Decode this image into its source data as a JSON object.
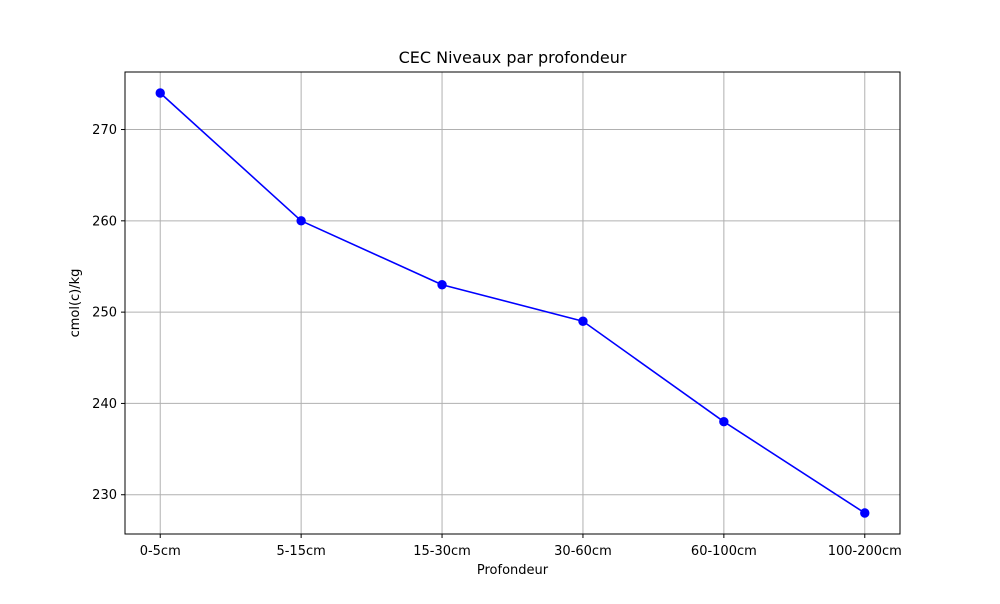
{
  "chart_data": {
    "type": "line",
    "title": "CEC Niveaux par profondeur",
    "xlabel": "Profondeur",
    "ylabel": "cmol(c)/kg",
    "categories": [
      "0-5cm",
      "5-15cm",
      "15-30cm",
      "30-60cm",
      "60-100cm",
      "100-200cm"
    ],
    "series": [
      {
        "values": [
          274,
          260,
          253,
          249,
          238,
          228
        ],
        "color": "#0000ff",
        "marker": "circle"
      }
    ],
    "yticks": [
      230,
      240,
      250,
      260,
      270
    ],
    "ylim": [
      225.7,
      276.3
    ],
    "grid": true,
    "legend": "none"
  }
}
